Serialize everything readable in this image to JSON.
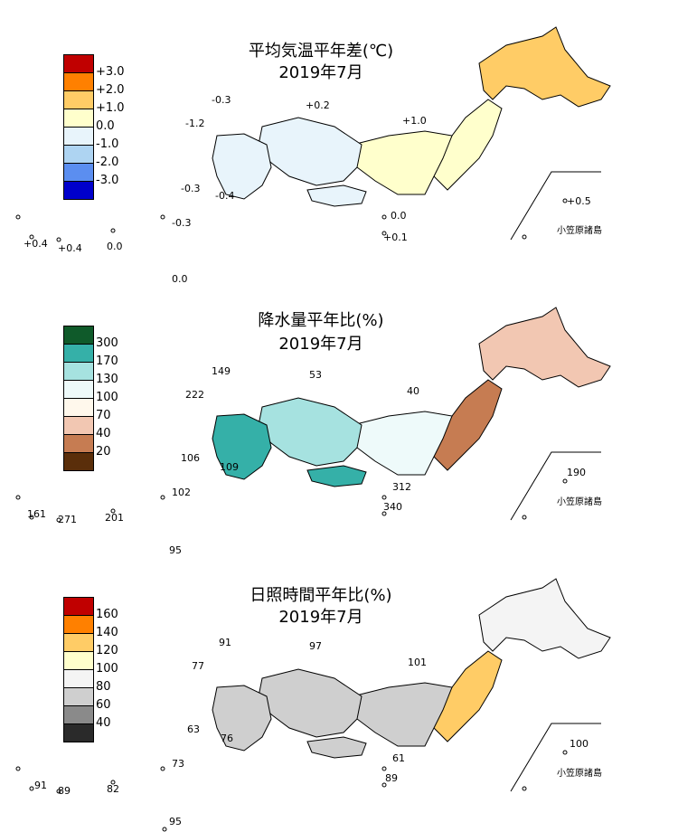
{
  "panels": [
    {
      "title": "平均気温平年差(℃)",
      "subtitle": "2019年7月",
      "legend": [
        "+3.0",
        "+2.0",
        "+1.0",
        "0.0",
        "-1.0",
        "-2.0",
        "-3.0"
      ],
      "legend_colors": [
        "#c00000",
        "#ff8000",
        "#ffcc66",
        "#ffffcc",
        "#e8f4fb",
        "#aed4f2",
        "#5b8ef0",
        "#0000cc"
      ],
      "values": {
        "hokkaido_w": "-0.3",
        "noto": "+0.2",
        "sea_w": "-1.2",
        "tohoku": "+1.0",
        "kyushu_w1": "-0.3",
        "kyushu_w2": "-0.4",
        "izu1": "0.0",
        "izu2": "+0.1",
        "bonin": "+0.5",
        "ryukyu_w": "+0.4",
        "ryukyu_c": "+0.4",
        "ryukyu_e": "0.0",
        "amami": "-0.3",
        "daito": "0.0"
      },
      "bonin_label": "小笠原諸島"
    },
    {
      "title": "降水量平年比(%)",
      "subtitle": "2019年7月",
      "legend": [
        "300",
        "170",
        "130",
        "100",
        "70",
        "40",
        "20"
      ],
      "legend_colors": [
        "#0f5a2a",
        "#35b0a8",
        "#a6e2e0",
        "#eefafa",
        "#fff8ec",
        "#f2c7b2",
        "#c67c52",
        "#5a2e0a"
      ],
      "values": {
        "hokkaido_w": "149",
        "noto": "53",
        "sea_w": "222",
        "tohoku": "40",
        "kyushu_w1": "106",
        "kyushu_w2": "109",
        "izu1": "312",
        "izu2": "340",
        "bonin": "190",
        "ryukyu_w": "161",
        "ryukyu_c": "271",
        "ryukyu_e": "201",
        "amami": "102",
        "daito": "95"
      },
      "bonin_label": "小笠原諸島"
    },
    {
      "title": "日照時間平年比(%)",
      "subtitle": "2019年7月",
      "legend": [
        "160",
        "140",
        "120",
        "100",
        "80",
        "60",
        "40"
      ],
      "legend_colors": [
        "#c00000",
        "#ff8000",
        "#ffcc66",
        "#ffffcc",
        "#f4f4f4",
        "#cfcfcf",
        "#8a8a8a",
        "#2a2a2a"
      ],
      "values": {
        "hokkaido_w": "91",
        "noto": "97",
        "sea_w": "77",
        "tohoku": "101",
        "kyushu_w1": "63",
        "kyushu_w2": "76",
        "izu1": "61",
        "izu2": "89",
        "bonin": "100",
        "ryukyu_w": "91",
        "ryukyu_c": "89",
        "ryukyu_e": "82",
        "amami": "73",
        "daito": "95"
      },
      "bonin_label": "小笠原諸島"
    }
  ]
}
